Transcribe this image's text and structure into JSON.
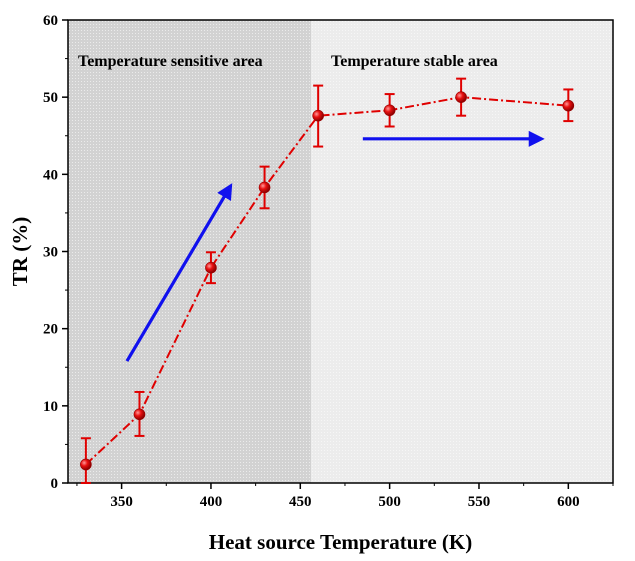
{
  "chart_data": {
    "type": "line",
    "title": "",
    "xlabel": "Heat source Temperature (K)",
    "ylabel": "TR (%)",
    "xlim": [
      320,
      625
    ],
    "ylim": [
      0,
      60
    ],
    "xticks": [
      350,
      400,
      450,
      500,
      550,
      600
    ],
    "yticks": [
      0,
      10,
      20,
      30,
      40,
      50,
      60
    ],
    "grid": false,
    "series": [
      {
        "name": "TR",
        "color": "#e00000",
        "line_style": "dash-dot",
        "marker": "sphere",
        "x": [
          330,
          360,
          400,
          430,
          460,
          500,
          540,
          600
        ],
        "y": [
          2.4,
          8.9,
          27.9,
          38.3,
          47.6,
          48.3,
          50.0,
          48.9
        ],
        "err_upper": [
          5.8,
          11.8,
          29.9,
          41.0,
          51.5,
          50.4,
          52.4,
          51.0
        ],
        "err_lower": [
          0.0,
          6.1,
          25.9,
          35.6,
          43.6,
          46.2,
          47.6,
          46.9
        ]
      }
    ],
    "regions": [
      {
        "label": "Temperature sensitive area",
        "x_range": [
          320,
          456
        ],
        "fill": "#d2d2d2"
      },
      {
        "label": "Temperature stable area",
        "x_range": [
          456,
          625
        ],
        "fill": "#ececec"
      }
    ],
    "annotations": [
      {
        "type": "arrow",
        "color": "#1010ee",
        "from": [
          353,
          15.8
        ],
        "to": [
          411,
          38.5
        ]
      },
      {
        "type": "arrow",
        "color": "#1010ee",
        "from": [
          485,
          44.6
        ],
        "to": [
          585,
          44.6
        ]
      }
    ]
  }
}
